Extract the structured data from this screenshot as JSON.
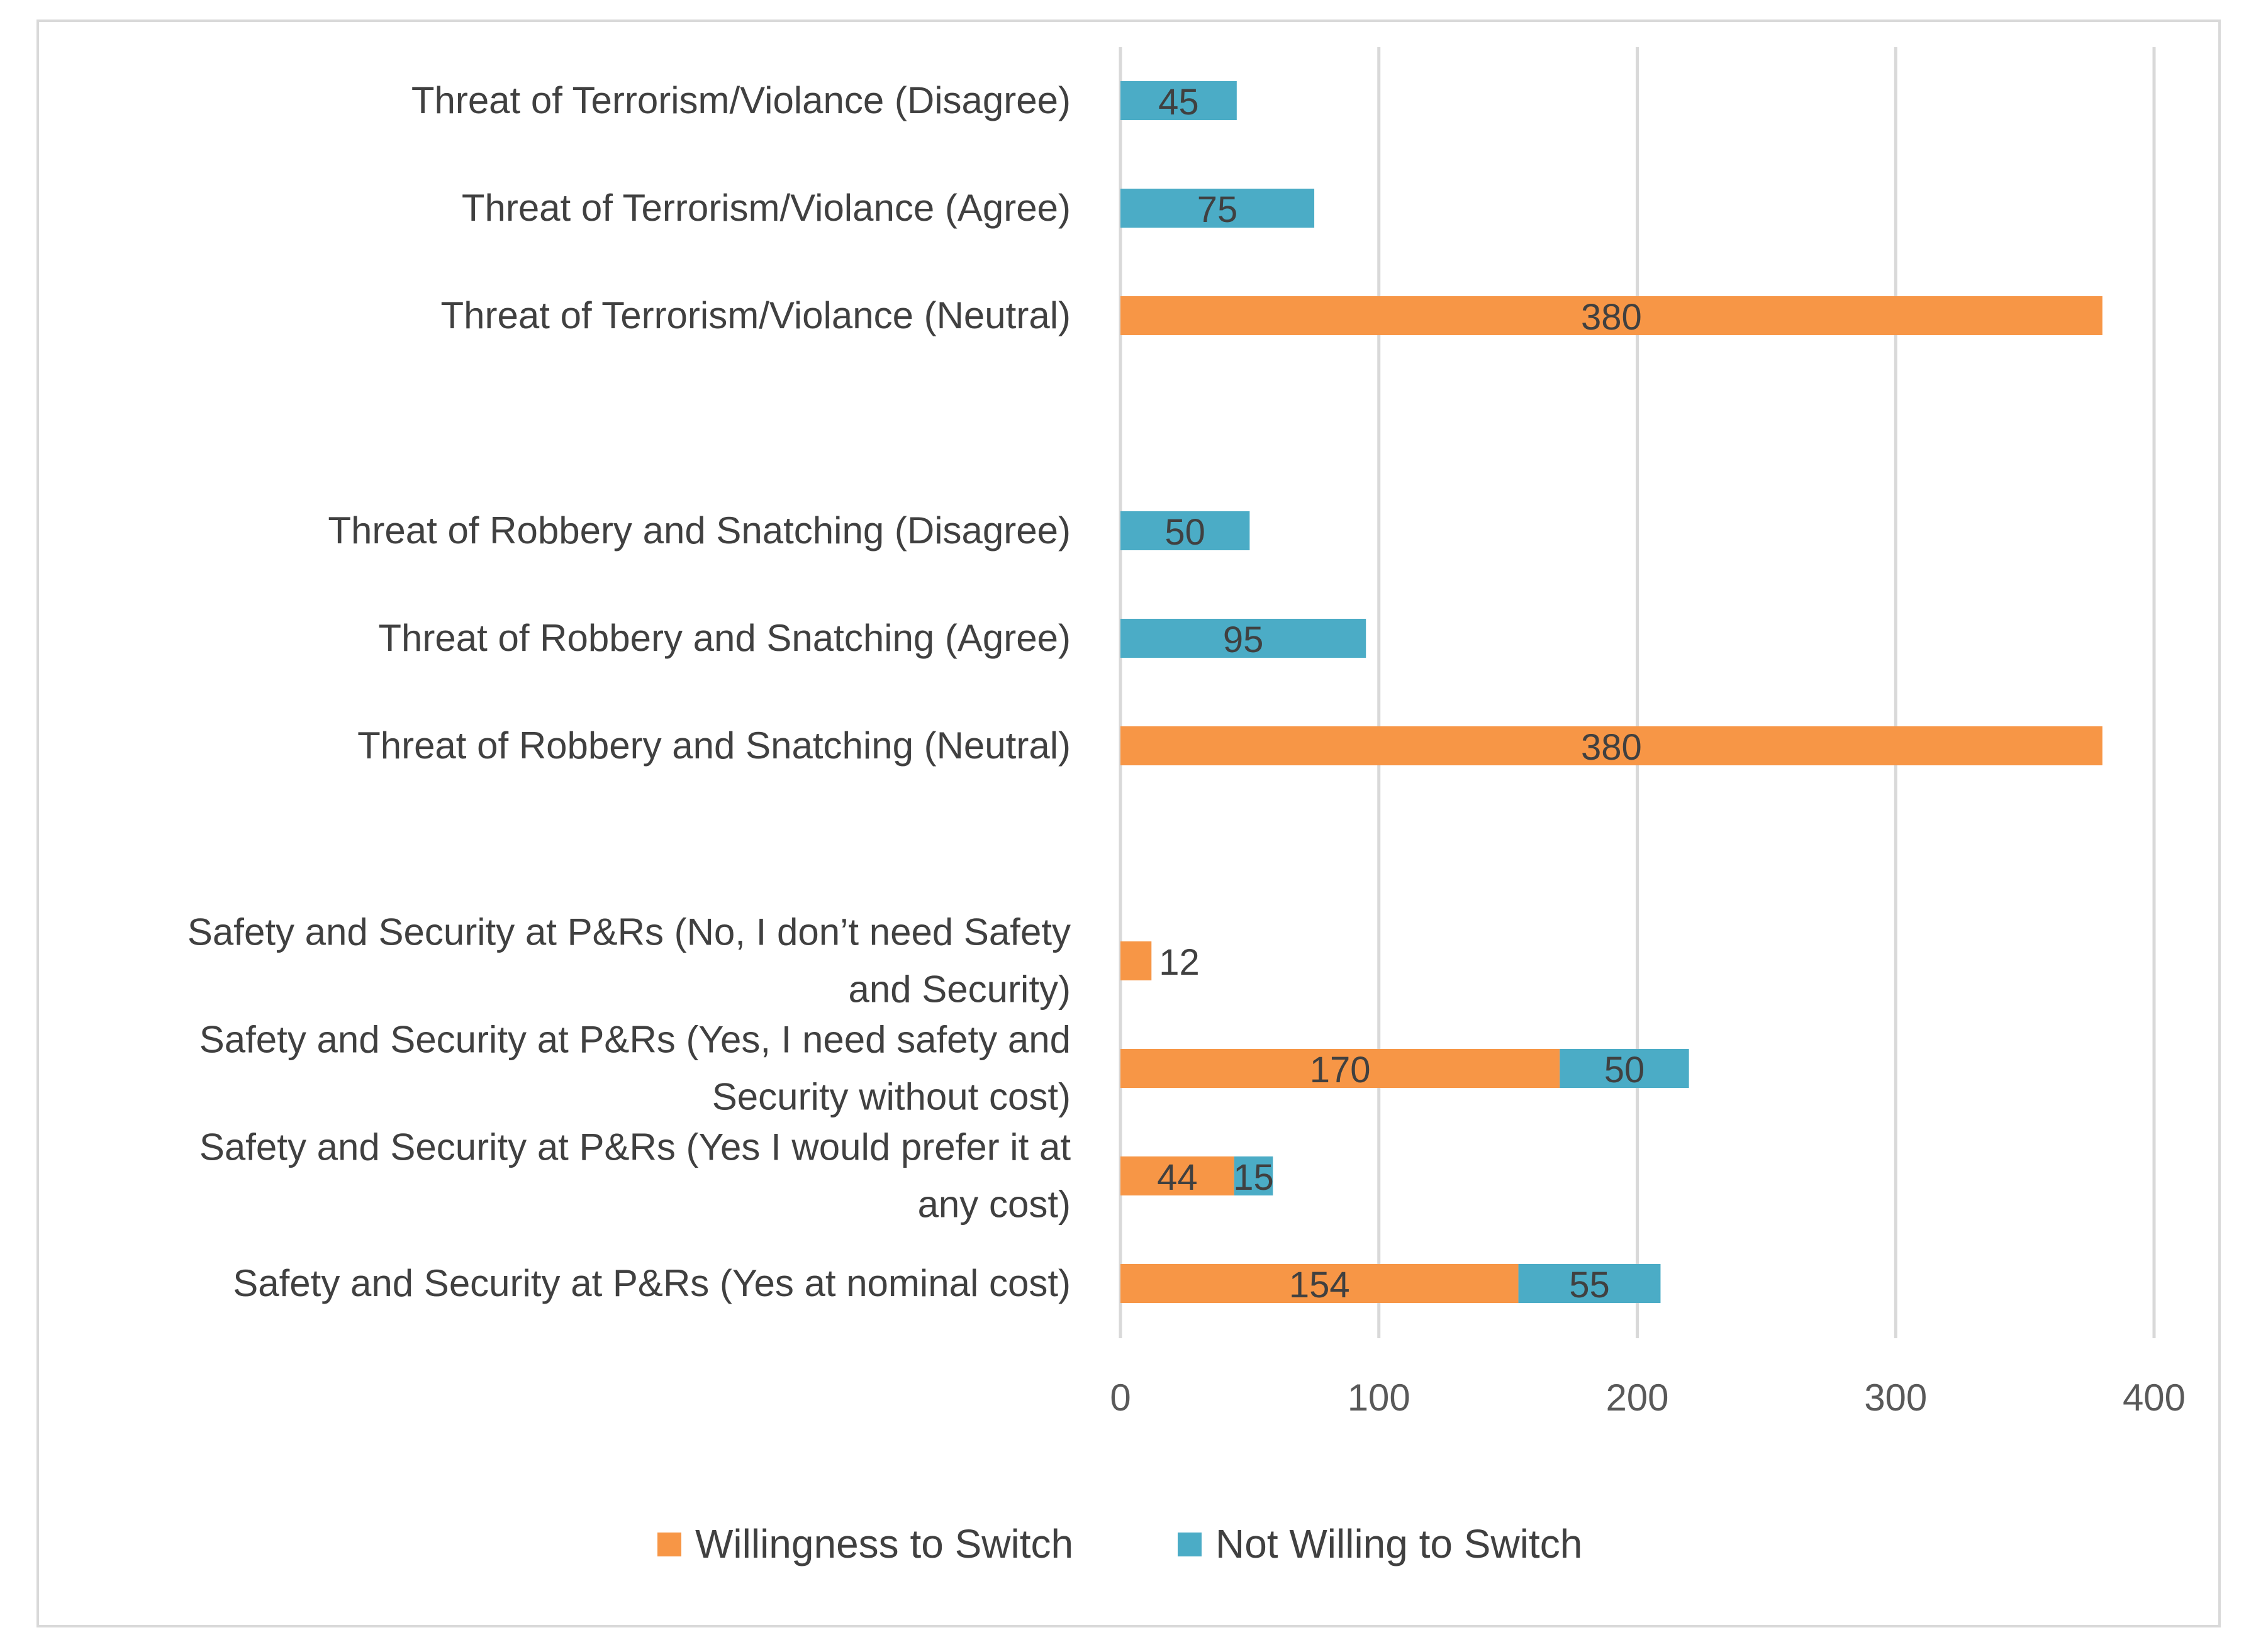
{
  "chart_data": {
    "type": "bar",
    "orientation": "horizontal",
    "stacked": true,
    "title": "",
    "xlabel": "",
    "ylabel": "",
    "xlim": [
      0,
      400
    ],
    "x_ticks": [
      0,
      100,
      200,
      300,
      400
    ],
    "grid": true,
    "legend_position": "bottom",
    "categories": [
      {
        "lines": [
          "Threat of Terrorism/Violance (Disagree)"
        ]
      },
      {
        "lines": [
          "Threat of Terrorism/Violance (Agree)"
        ]
      },
      {
        "lines": [
          "Threat of Terrorism/Violance (Neutral)"
        ]
      },
      {
        "lines": [],
        "gap": true
      },
      {
        "lines": [
          "Threat of Robbery and Snatching (Disagree)"
        ]
      },
      {
        "lines": [
          "Threat of Robbery and Snatching (Agree)"
        ]
      },
      {
        "lines": [
          "Threat of Robbery and Snatching (Neutral)"
        ]
      },
      {
        "lines": [],
        "gap": true
      },
      {
        "lines": [
          "Safety and Security at P&Rs (No, I don’t need Safety",
          "and Security)"
        ]
      },
      {
        "lines": [
          "Safety and Security at P&Rs (Yes, I need safety and",
          "Security without cost)"
        ]
      },
      {
        "lines": [
          "Safety and Security at P&Rs (Yes I would prefer it at",
          "any cost)"
        ]
      },
      {
        "lines": [
          "Safety and Security at P&Rs (Yes at nominal cost)"
        ]
      }
    ],
    "series": [
      {
        "name": "Willingness to Switch",
        "color": "#f79646",
        "values": [
          null,
          null,
          380,
          null,
          null,
          null,
          380,
          null,
          12,
          170,
          44,
          154
        ]
      },
      {
        "name": "Not Willing to Switch",
        "color": "#4bacc6",
        "values": [
          45,
          75,
          null,
          null,
          50,
          95,
          null,
          null,
          null,
          50,
          15,
          55
        ]
      }
    ]
  }
}
